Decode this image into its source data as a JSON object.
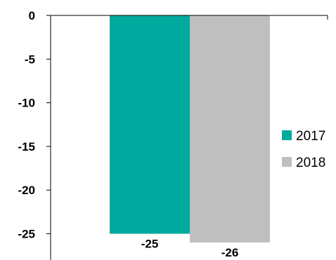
{
  "chart_data": {
    "type": "bar",
    "categories": [
      ""
    ],
    "series": [
      {
        "name": "2017",
        "values": [
          -25
        ],
        "color": "#00a99d"
      },
      {
        "name": "2018",
        "values": [
          -26
        ],
        "color": "#bfbfbf"
      }
    ],
    "data_labels": [
      "-25",
      "-26"
    ],
    "title": "",
    "xlabel": "",
    "ylabel": "",
    "ylim": [
      -26,
      0
    ],
    "yticks": [
      0,
      -5,
      -10,
      -15,
      -20,
      -25
    ],
    "grid": false,
    "legend_position": "right"
  }
}
